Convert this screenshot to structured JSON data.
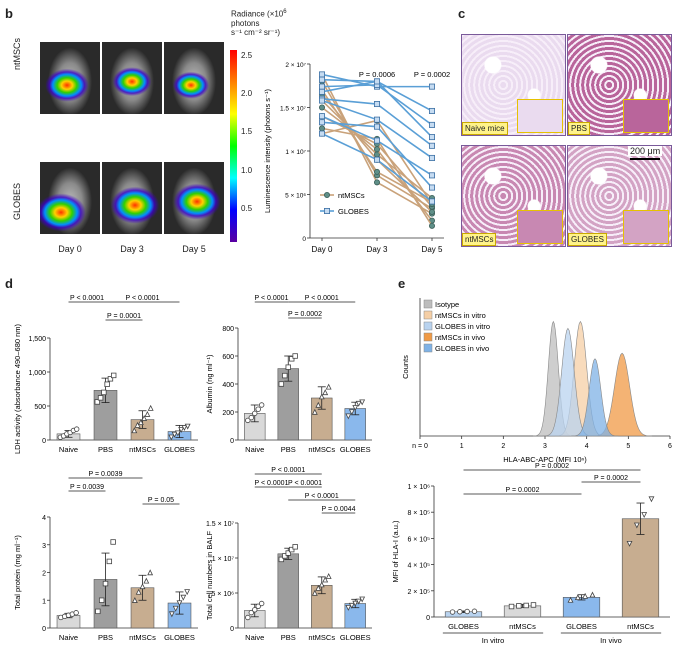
{
  "panel_letters": {
    "b": "b",
    "c": "c",
    "d": "d",
    "e": "e"
  },
  "imaging": {
    "row_labels": [
      "ntMSCs",
      "GLOBES"
    ],
    "day_labels": [
      "Day 0",
      "Day 3",
      "Day 5"
    ],
    "colorbar": {
      "title_line1": "Radiance (×10",
      "title_exp": "6",
      "title_line2": "photons",
      "title_line3": "s⁻¹ cm⁻² sr⁻¹)",
      "ticks": [
        "2.5",
        "2.0",
        "1.5",
        "1.0",
        "0.5"
      ],
      "colors": [
        "#ff0000",
        "#ff8000",
        "#ffff00",
        "#00ff00",
        "#00ffff",
        "#0000ff",
        "#5a00a0"
      ]
    }
  },
  "histology": {
    "labels": [
      "Naive mice",
      "PBS",
      "ntMSCs",
      "GLOBES"
    ],
    "scalebar": "200 μm",
    "tissue_color": "#b04080"
  },
  "chart_data": [
    {
      "id": "luminescence",
      "type": "line",
      "ylabel": "Luminescence intensity (photons s⁻¹)",
      "x": [
        "Day 0",
        "Day 3",
        "Day 5"
      ],
      "ylim": [
        0,
        20000000
      ],
      "yticks": [
        "0",
        "5 × 10⁶",
        "1 × 10⁷",
        "1.5 × 10⁷",
        "2 × 10⁷"
      ],
      "ytick_values": [
        0,
        5000000,
        10000000,
        15000000,
        20000000
      ],
      "pvalues": [
        {
          "text": "P = 0.0006",
          "x": "Day 3"
        },
        {
          "text": "P = 0.0002",
          "x": "Day 5"
        }
      ],
      "series": [
        {
          "name": "ntMSCs",
          "color": "#c9a27a",
          "marker": "circle",
          "lines": [
            [
              18800000,
              6400000,
              2800000
            ],
            [
              18000000,
              7200000,
              3400000
            ],
            [
              17000000,
              7600000,
              4100000
            ],
            [
              16500000,
              9000000,
              3000000
            ],
            [
              15800000,
              9600000,
              4600000
            ],
            [
              15000000,
              10200000,
              2000000
            ],
            [
              14000000,
              10800000,
              3600000
            ],
            [
              12600000,
              11400000,
              1400000
            ],
            [
              12000000,
              13500000,
              3900000
            ]
          ]
        },
        {
          "name": "GLOBES",
          "color": "#5a9fd6",
          "marker": "square",
          "lines": [
            [
              18800000,
              17400000,
              17400000
            ],
            [
              18200000,
              18000000,
              14600000
            ],
            [
              17400000,
              17600000,
              13000000
            ],
            [
              16800000,
              18000000,
              11600000
            ],
            [
              16000000,
              15400000,
              10600000
            ],
            [
              15800000,
              13600000,
              9200000
            ],
            [
              14000000,
              11200000,
              7200000
            ],
            [
              13300000,
              12800000,
              5800000
            ],
            [
              12000000,
              9000000,
              4200000
            ]
          ]
        }
      ],
      "legend": [
        "ntMSCs",
        "GLOBES"
      ]
    },
    {
      "id": "ldh",
      "type": "bar",
      "ylabel": "LDH activity (absorbance 490–680 nm)",
      "categories": [
        "Naive",
        "PBS",
        "ntMSCs",
        "GLOBES"
      ],
      "values": [
        90,
        730,
        300,
        125
      ],
      "errors": [
        50,
        180,
        130,
        90
      ],
      "ylim": [
        0,
        1500
      ],
      "yticks": [
        "0",
        "500",
        "1,000",
        "1,500"
      ],
      "ytick_values": [
        0,
        500,
        1000,
        1500
      ],
      "colors": [
        "#d9d9d9",
        "#9e9e9e",
        "#c7ad90",
        "#8ab8ec"
      ],
      "points": [
        [
          40,
          60,
          90,
          110,
          140,
          160
        ],
        [
          560,
          620,
          700,
          820,
          900,
          950
        ],
        [
          140,
          220,
          260,
          320,
          380,
          470
        ],
        [
          40,
          80,
          100,
          150,
          180,
          200
        ]
      ],
      "markers": [
        "circle",
        "square",
        "triangle",
        "triangle-down"
      ],
      "sig": [
        {
          "text": "P < 0.0001",
          "from": 0,
          "to": 1,
          "level": 0
        },
        {
          "text": "P < 0.0001",
          "from": 1,
          "to": 3,
          "level": 0
        },
        {
          "text": "P = 0.0001",
          "from": 1,
          "to": 2,
          "level": 1
        }
      ]
    },
    {
      "id": "albumin",
      "type": "bar",
      "ylabel": "Albumin (ng ml⁻¹)",
      "categories": [
        "Naive",
        "PBS",
        "ntMSCs",
        "GLOBES"
      ],
      "values": [
        190,
        510,
        300,
        225
      ],
      "errors": [
        60,
        90,
        80,
        45
      ],
      "ylim": [
        0,
        800
      ],
      "yticks": [
        "0",
        "200",
        "400",
        "600",
        "800"
      ],
      "ytick_values": [
        0,
        200,
        400,
        600,
        800
      ],
      "colors": [
        "#d9d9d9",
        "#9e9e9e",
        "#c7ad90",
        "#8ab8ec"
      ],
      "points": [
        [
          140,
          160,
          190,
          220,
          250
        ],
        [
          400,
          460,
          520,
          580,
          600
        ],
        [
          200,
          250,
          310,
          340,
          380
        ],
        [
          170,
          200,
          230,
          260,
          270
        ]
      ],
      "markers": [
        "circle",
        "square",
        "triangle",
        "triangle-down"
      ],
      "sig": [
        {
          "text": "P < 0.0001",
          "from": 0,
          "to": 1,
          "level": 0
        },
        {
          "text": "P < 0.0001",
          "from": 1,
          "to": 3,
          "level": 0
        },
        {
          "text": "P = 0.0002",
          "from": 1,
          "to": 2,
          "level": 1
        }
      ]
    },
    {
      "id": "protein",
      "type": "bar",
      "ylabel": "Total protein (mg ml⁻¹)",
      "categories": [
        "Naive",
        "PBS",
        "ntMSCs",
        "GLOBES"
      ],
      "values": [
        0.45,
        1.75,
        1.45,
        0.9
      ],
      "errors": [
        0.08,
        0.95,
        0.45,
        0.4
      ],
      "ylim": [
        0,
        4
      ],
      "yticks": [
        "0",
        "1",
        "2",
        "3",
        "4"
      ],
      "ytick_values": [
        0,
        1,
        2,
        3,
        4
      ],
      "colors": [
        "#d9d9d9",
        "#9e9e9e",
        "#c7ad90",
        "#8ab8ec"
      ],
      "points": [
        [
          0.38,
          0.42,
          0.46,
          0.5,
          0.55
        ],
        [
          0.6,
          1.0,
          1.6,
          2.4,
          3.1
        ],
        [
          1.0,
          1.3,
          1.5,
          1.7,
          2.0
        ],
        [
          0.5,
          0.7,
          0.9,
          1.1,
          1.3
        ]
      ],
      "markers": [
        "circle",
        "square",
        "triangle",
        "triangle-down"
      ],
      "sig": [
        {
          "text": "P = 0.0039",
          "from": 0,
          "to": 2,
          "level": 0
        },
        {
          "text": "P = 0.0039",
          "from": 0,
          "to": 1,
          "level": 1
        },
        {
          "text": "P = 0.05",
          "from": 2,
          "to": 3,
          "level": 2
        }
      ]
    },
    {
      "id": "cells",
      "type": "bar",
      "ylabel": "Total cell numbers in BALF",
      "categories": [
        "Naive",
        "PBS",
        "ntMSCs",
        "GLOBES"
      ],
      "values": [
        2500000,
        10600000,
        6100000,
        3500000
      ],
      "errors": [
        900000,
        800000,
        1200000,
        600000
      ],
      "ylim": [
        0,
        15000000
      ],
      "yticks": [
        "0",
        "5 × 10⁶",
        "1 × 10⁷",
        "1.5 × 10⁷"
      ],
      "ytick_values": [
        0,
        5000000,
        10000000,
        15000000
      ],
      "colors": [
        "#d9d9d9",
        "#9e9e9e",
        "#c7ad90",
        "#8ab8ec"
      ],
      "points": [
        [
          1500000,
          2200000,
          2600000,
          3100000,
          3500000
        ],
        [
          9800000,
          10300000,
          10700000,
          11200000,
          11600000
        ],
        [
          5000000,
          5700000,
          6200000,
          6900000,
          7400000
        ],
        [
          2900000,
          3200000,
          3500000,
          3800000,
          4100000
        ]
      ],
      "markers": [
        "circle",
        "square",
        "triangle",
        "triangle-down"
      ],
      "sig": [
        {
          "text": "P < 0.0001",
          "from": 0,
          "to": 2,
          "level": 0
        },
        {
          "text": "P < 0.0001",
          "from": 0,
          "to": 1,
          "level": 1
        },
        {
          "text": "P < 0.0001",
          "from": 1,
          "to": 2,
          "level": 1
        },
        {
          "text": "P < 0.0001",
          "from": 1,
          "to": 3,
          "level": 2
        },
        {
          "text": "P = 0.0044",
          "from": 2,
          "to": 3,
          "level": 3
        }
      ]
    },
    {
      "id": "flow",
      "type": "area",
      "xlabel": "HLA-ABC-APC (MFI 10ⁿ)",
      "ylabel": "Counts",
      "xticks": [
        "n = 0",
        "1",
        "2",
        "3",
        "4",
        "5",
        "6"
      ],
      "xtick_values": [
        0,
        1,
        2,
        3,
        4,
        5,
        6
      ],
      "xlim": [
        0,
        6
      ],
      "series": [
        {
          "name": "Isotype",
          "color": "#bdbdbd",
          "peak": 3.2,
          "width": 0.12,
          "height": 0.83
        },
        {
          "name": "ntMSCs in vitro",
          "color": "#f5cfa6",
          "peak": 3.85,
          "width": 0.15,
          "height": 0.83
        },
        {
          "name": "GLOBES in vitro",
          "color": "#b9d3ef",
          "peak": 3.55,
          "width": 0.15,
          "height": 0.78
        },
        {
          "name": "ntMSCs in vivo",
          "color": "#f09a45",
          "peak": 4.85,
          "width": 0.18,
          "height": 0.6
        },
        {
          "name": "GLOBES in vivo",
          "color": "#7fb2e6",
          "peak": 4.2,
          "width": 0.14,
          "height": 0.56
        }
      ]
    },
    {
      "id": "mfi",
      "type": "bar",
      "ylabel": "MFI of HLA-I (a.u.)",
      "categories": [
        "GLOBES",
        "ntMSCs",
        "GLOBES",
        "ntMSCs"
      ],
      "groups": [
        "In vitro",
        "In vivo"
      ],
      "values": [
        40000,
        85000,
        150000,
        750000
      ],
      "errors": [
        6000,
        12000,
        20000,
        120000
      ],
      "ylim": [
        0,
        1000000
      ],
      "yticks": [
        "0",
        "2 × 10⁵",
        "4 × 10⁵",
        "6 × 10⁵",
        "8 × 10⁵",
        "1 × 10⁶"
      ],
      "ytick_values": [
        0,
        200000,
        400000,
        600000,
        800000,
        1000000
      ],
      "colors": [
        "#b9d3ef",
        "#d9d9d9",
        "#8ab8ec",
        "#c7ad90"
      ],
      "points": [
        [
          38000,
          40000,
          42000,
          44000
        ],
        [
          80000,
          85000,
          88000,
          92000
        ],
        [
          130000,
          150000,
          160000,
          170000
        ],
        [
          560000,
          700000,
          780000,
          900000
        ]
      ],
      "markers": [
        "circle",
        "square",
        "triangle",
        "triangle-down"
      ],
      "sig": [
        {
          "text": "P = 0.0002",
          "from": 0,
          "to": 3,
          "level": 0
        },
        {
          "text": "P = 0.0002",
          "from": 2,
          "to": 3,
          "level": 1
        },
        {
          "text": "P = 0.0002",
          "from": 0,
          "to": 2,
          "level": 2
        }
      ]
    }
  ]
}
